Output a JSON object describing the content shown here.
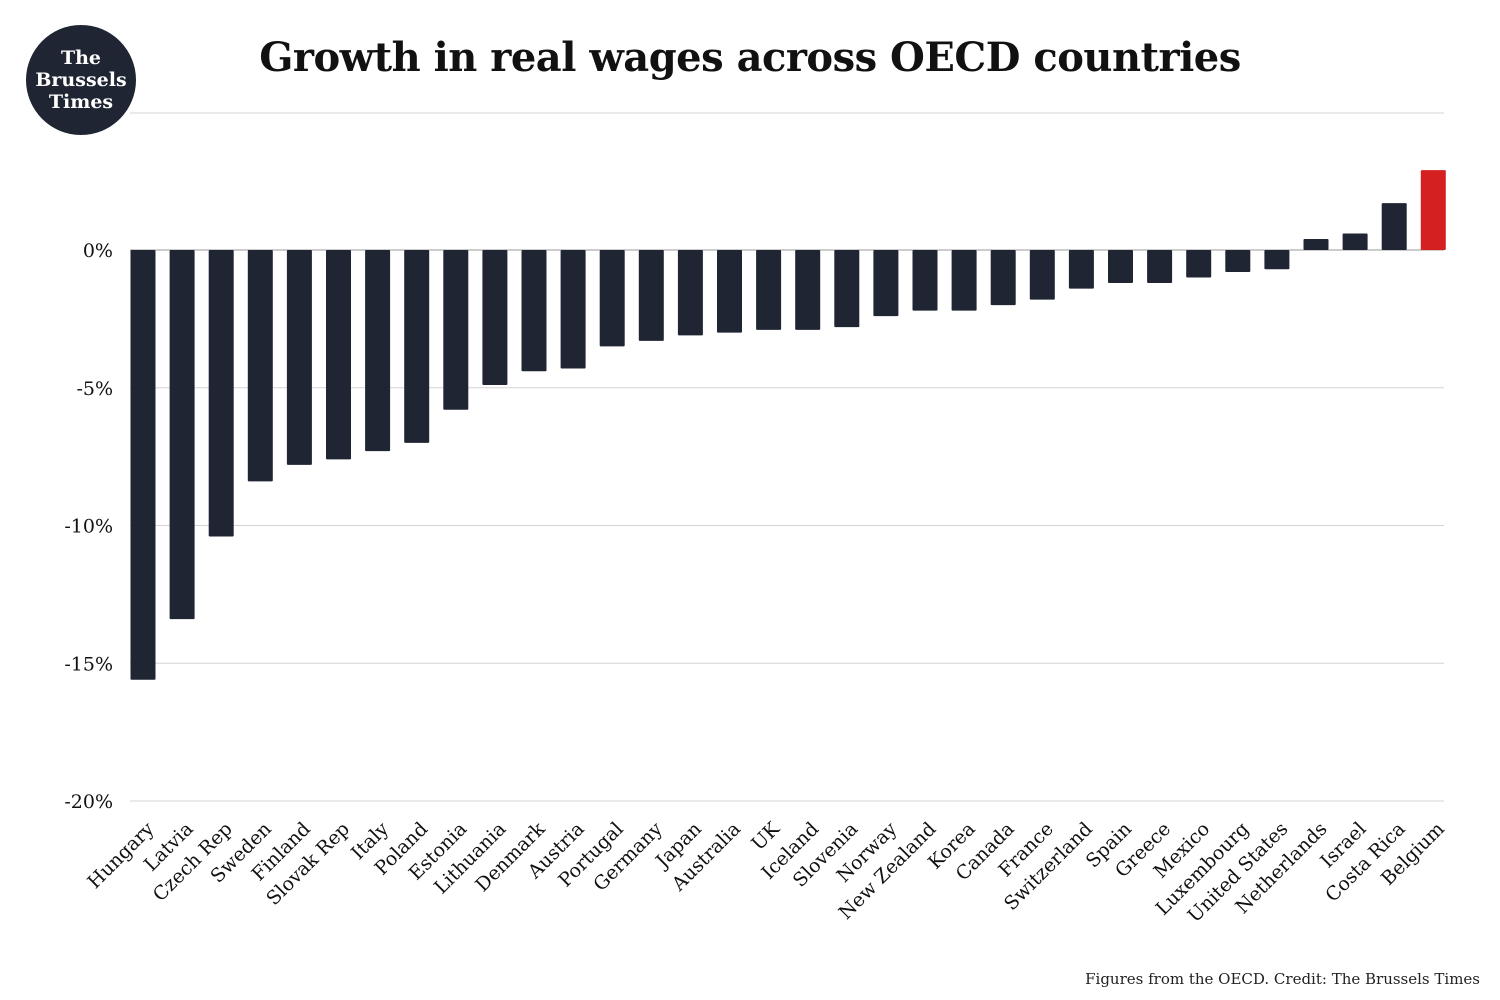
{
  "logo": {
    "text": "The\nBrussels\nTimes"
  },
  "colors": {
    "bar": "#1f2533",
    "highlight": "#d42020",
    "grid": "#d4d4d4"
  },
  "chart_data": {
    "type": "bar",
    "title": "Growth in real wages across OECD countries",
    "xlabel": "",
    "ylabel": "",
    "ylim": [
      -20,
      5
    ],
    "yticks": [
      0,
      -5,
      -10,
      -15,
      -20
    ],
    "ytick_labels": [
      "0%",
      "-5%",
      "-10%",
      "-15%",
      "-20%"
    ],
    "grid": true,
    "highlight_category": "Belgium",
    "categories": [
      "Hungary",
      "Latvia",
      "Czech Rep",
      "Sweden",
      "Finland",
      "Slovak Rep",
      "Italy",
      "Poland",
      "Estonia",
      "Lithuania",
      "Denmark",
      "Austria",
      "Portugal",
      "Germany",
      "Japan",
      "Australia",
      "UK",
      "Iceland",
      "Slovenia",
      "Norway",
      "New Zealand",
      "Korea",
      "Canada",
      "France",
      "Switzerland",
      "Spain",
      "Greece",
      "Mexico",
      "Luxembourg",
      "United States",
      "Netherlands",
      "Israel",
      "Costa Rica",
      "Belgium"
    ],
    "values": [
      -15.6,
      -13.4,
      -10.4,
      -8.4,
      -7.8,
      -7.6,
      -7.3,
      -7.0,
      -5.8,
      -4.9,
      -4.4,
      -4.3,
      -3.5,
      -3.3,
      -3.1,
      -3.0,
      -2.9,
      -2.9,
      -2.8,
      -2.4,
      -2.2,
      -2.2,
      -2.0,
      -1.8,
      -1.4,
      -1.2,
      -1.2,
      -1.0,
      -0.8,
      -0.7,
      0.4,
      0.6,
      1.7,
      2.9
    ]
  },
  "footer": {
    "credit": "Figures from the OECD. Credit: The Brussels Times"
  }
}
